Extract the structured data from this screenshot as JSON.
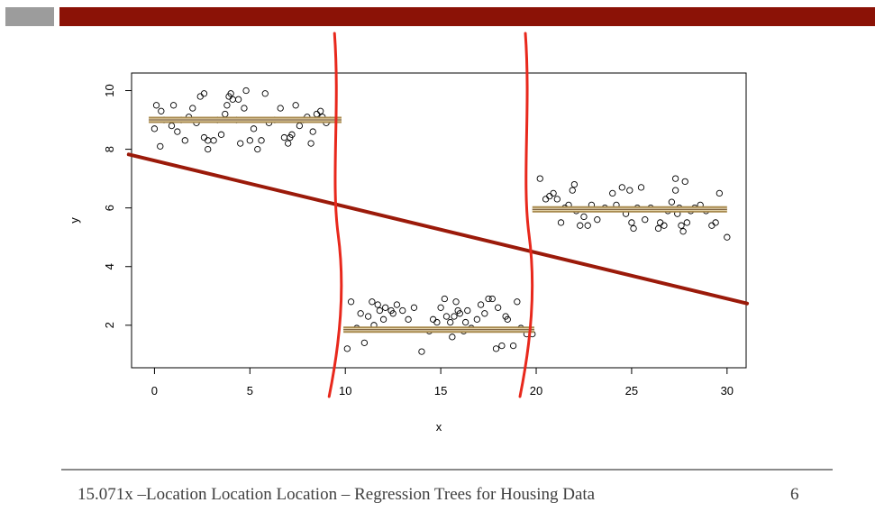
{
  "slide": {
    "footer_text": "15.071x –Location Location Location – Regression Trees for Housing Data",
    "page_number": "6",
    "colors": {
      "header_grey": "#9c9c9c",
      "header_red": "#8b1206",
      "regression_line": "#9b1a0a",
      "split_marks": "#e8281c",
      "leaf_means": "#a88a4e"
    }
  },
  "chart_data": {
    "type": "scatter",
    "title": "",
    "xlabel": "x",
    "ylabel": "y",
    "xlim": [
      -1.2,
      31.0
    ],
    "ylim": [
      0.55,
      10.6
    ],
    "x_ticks": [
      "0",
      "5",
      "10",
      "15",
      "20",
      "25",
      "30"
    ],
    "y_ticks": [
      "2",
      "4",
      "6",
      "8",
      "10"
    ],
    "grid": false,
    "points": [
      [
        0.0,
        8.7
      ],
      [
        0.1,
        9.5
      ],
      [
        0.3,
        8.1
      ],
      [
        0.35,
        9.3
      ],
      [
        0.5,
        9.0
      ],
      [
        0.9,
        8.8
      ],
      [
        1.0,
        9.5
      ],
      [
        1.2,
        8.6
      ],
      [
        1.4,
        9.0
      ],
      [
        1.6,
        8.3
      ],
      [
        1.8,
        9.1
      ],
      [
        2.0,
        9.4
      ],
      [
        2.2,
        8.9
      ],
      [
        2.4,
        9.8
      ],
      [
        2.6,
        9.9
      ],
      [
        2.6,
        8.4
      ],
      [
        2.8,
        8.3
      ],
      [
        2.8,
        8.0
      ],
      [
        3.1,
        8.3
      ],
      [
        3.3,
        9.0
      ],
      [
        3.5,
        8.5
      ],
      [
        3.7,
        9.2
      ],
      [
        3.8,
        9.5
      ],
      [
        3.9,
        9.8
      ],
      [
        4.0,
        9.9
      ],
      [
        4.1,
        9.7
      ],
      [
        4.3,
        9.0
      ],
      [
        4.4,
        9.7
      ],
      [
        4.5,
        8.2
      ],
      [
        4.7,
        9.4
      ],
      [
        4.8,
        10.0
      ],
      [
        5.0,
        8.3
      ],
      [
        5.2,
        8.7
      ],
      [
        5.4,
        8.0
      ],
      [
        5.6,
        8.3
      ],
      [
        5.8,
        9.9
      ],
      [
        6.0,
        8.9
      ],
      [
        6.3,
        9.0
      ],
      [
        6.6,
        9.4
      ],
      [
        6.8,
        8.4
      ],
      [
        7.0,
        8.2
      ],
      [
        7.1,
        8.4
      ],
      [
        7.2,
        8.5
      ],
      [
        7.4,
        9.5
      ],
      [
        7.6,
        8.8
      ],
      [
        7.8,
        9.0
      ],
      [
        8.0,
        9.1
      ],
      [
        8.2,
        8.2
      ],
      [
        8.3,
        8.6
      ],
      [
        8.5,
        9.2
      ],
      [
        8.7,
        9.3
      ],
      [
        8.8,
        9.1
      ],
      [
        9.0,
        8.9
      ],
      [
        9.2,
        9.0
      ],
      [
        10.1,
        1.2
      ],
      [
        10.3,
        2.8
      ],
      [
        10.6,
        1.9
      ],
      [
        10.8,
        2.4
      ],
      [
        11.0,
        1.4
      ],
      [
        11.2,
        2.3
      ],
      [
        11.4,
        2.8
      ],
      [
        11.5,
        2.0
      ],
      [
        11.7,
        2.7
      ],
      [
        11.8,
        2.5
      ],
      [
        12.0,
        2.2
      ],
      [
        12.1,
        2.6
      ],
      [
        12.4,
        2.5
      ],
      [
        12.5,
        2.4
      ],
      [
        12.7,
        2.7
      ],
      [
        13.0,
        2.5
      ],
      [
        13.3,
        2.2
      ],
      [
        13.6,
        2.6
      ],
      [
        14.0,
        1.1
      ],
      [
        14.4,
        1.8
      ],
      [
        14.6,
        2.2
      ],
      [
        14.8,
        2.1
      ],
      [
        15.0,
        2.6
      ],
      [
        15.2,
        2.9
      ],
      [
        15.3,
        2.3
      ],
      [
        15.5,
        2.1
      ],
      [
        15.6,
        1.6
      ],
      [
        15.7,
        2.3
      ],
      [
        15.8,
        2.8
      ],
      [
        15.9,
        2.5
      ],
      [
        16.0,
        2.4
      ],
      [
        16.2,
        1.8
      ],
      [
        16.3,
        2.1
      ],
      [
        16.4,
        2.5
      ],
      [
        16.6,
        1.9
      ],
      [
        16.9,
        2.2
      ],
      [
        17.1,
        2.7
      ],
      [
        17.3,
        2.4
      ],
      [
        17.5,
        2.9
      ],
      [
        17.7,
        2.9
      ],
      [
        17.9,
        1.2
      ],
      [
        18.0,
        2.6
      ],
      [
        18.2,
        1.3
      ],
      [
        18.4,
        2.3
      ],
      [
        18.5,
        2.2
      ],
      [
        18.8,
        1.3
      ],
      [
        19.0,
        2.8
      ],
      [
        19.2,
        1.9
      ],
      [
        19.5,
        1.7
      ],
      [
        19.8,
        1.7
      ],
      [
        20.2,
        7.0
      ],
      [
        20.5,
        6.3
      ],
      [
        20.7,
        6.4
      ],
      [
        20.9,
        6.5
      ],
      [
        21.1,
        6.3
      ],
      [
        21.3,
        5.5
      ],
      [
        21.5,
        6.0
      ],
      [
        21.7,
        6.1
      ],
      [
        21.9,
        6.6
      ],
      [
        22.0,
        6.8
      ],
      [
        22.1,
        5.9
      ],
      [
        22.3,
        5.4
      ],
      [
        22.5,
        5.7
      ],
      [
        22.7,
        5.4
      ],
      [
        22.9,
        6.1
      ],
      [
        23.2,
        5.6
      ],
      [
        23.6,
        6.0
      ],
      [
        24.0,
        6.5
      ],
      [
        24.2,
        6.1
      ],
      [
        24.5,
        6.7
      ],
      [
        24.7,
        5.8
      ],
      [
        24.9,
        6.6
      ],
      [
        25.0,
        5.5
      ],
      [
        25.1,
        5.3
      ],
      [
        25.3,
        6.0
      ],
      [
        25.5,
        6.7
      ],
      [
        25.7,
        5.6
      ],
      [
        26.0,
        6.0
      ],
      [
        26.4,
        5.3
      ],
      [
        26.7,
        5.4
      ],
      [
        26.9,
        5.9
      ],
      [
        27.1,
        6.2
      ],
      [
        27.3,
        7.0
      ],
      [
        27.3,
        6.6
      ],
      [
        27.5,
        6.0
      ],
      [
        27.6,
        5.4
      ],
      [
        27.7,
        5.2
      ],
      [
        27.8,
        6.9
      ],
      [
        27.9,
        5.5
      ],
      [
        28.1,
        5.9
      ],
      [
        28.3,
        6.0
      ],
      [
        28.6,
        6.1
      ],
      [
        28.9,
        5.9
      ],
      [
        29.2,
        5.4
      ],
      [
        29.4,
        5.5
      ],
      [
        29.6,
        6.5
      ],
      [
        30.0,
        5.0
      ],
      [
        26.5,
        5.5
      ],
      [
        27.4,
        5.8
      ]
    ],
    "regression_line": {
      "x": [
        -1.2,
        31.0
      ],
      "y": [
        7.8,
        2.75
      ]
    },
    "leaf_means": [
      {
        "x": [
          -0.3,
          9.8
        ],
        "y": 9.0
      },
      {
        "x": [
          9.9,
          19.9
        ],
        "y": 1.85
      },
      {
        "x": [
          19.8,
          30.0
        ],
        "y": 5.95
      }
    ],
    "split_marks": [
      10,
      20
    ]
  }
}
